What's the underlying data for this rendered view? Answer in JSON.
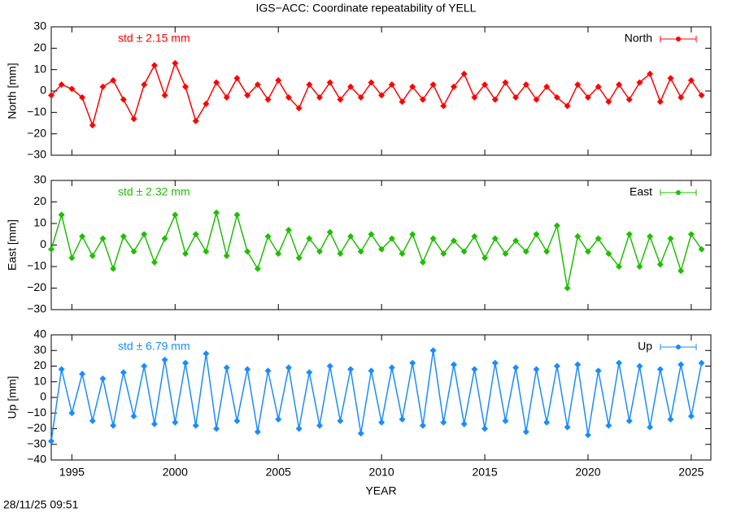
{
  "footer": "28/11/25 09:51",
  "chart_data": [
    {
      "type": "line",
      "title": "IGS−ACC: Coordinate repeatability of YELL",
      "ylabel": "North [mm]",
      "annotation": "std ± 2.15 mm",
      "legend": "top-right",
      "x": [
        1994.0,
        1994.5,
        1995.0,
        1995.5,
        1996.0,
        1996.5,
        1997.0,
        1997.5,
        1998.0,
        1998.5,
        1999.0,
        1999.5,
        2000.0,
        2000.5,
        2001.0,
        2001.5,
        2002.0,
        2002.5,
        2003.0,
        2003.5,
        2004.0,
        2004.5,
        2005.0,
        2005.5,
        2006.0,
        2006.5,
        2007.0,
        2007.5,
        2008.0,
        2008.5,
        2009.0,
        2009.5,
        2010.0,
        2010.5,
        2011.0,
        2011.5,
        2012.0,
        2012.5,
        2013.0,
        2013.5,
        2014.0,
        2014.5,
        2015.0,
        2015.5,
        2016.0,
        2016.5,
        2017.0,
        2017.5,
        2018.0,
        2018.5,
        2019.0,
        2019.5,
        2020.0,
        2020.5,
        2021.0,
        2021.5,
        2022.0,
        2022.5,
        2023.0,
        2023.5,
        2024.0,
        2024.5,
        2025.0,
        2025.5
      ],
      "xlim": [
        1994,
        2025.95
      ],
      "xticks": [
        1995,
        2000,
        2005,
        2010,
        2015,
        2020,
        2025
      ],
      "ylim": [
        -30,
        30
      ],
      "yticks": [
        {
          "value": -30,
          "label": "−30"
        },
        {
          "value": -20,
          "label": "−20"
        },
        {
          "value": -10,
          "label": "−10"
        },
        0,
        10,
        20,
        30
      ],
      "series": [
        {
          "name": "North",
          "color": "#ff0000",
          "values": [
            -2,
            3,
            1,
            -3,
            -16,
            2,
            5,
            -4,
            -13,
            3,
            12,
            -2,
            13,
            2,
            -14,
            -6,
            4,
            -3,
            6,
            -2,
            3,
            -4,
            5,
            -3,
            -8,
            3,
            -3,
            4,
            -4,
            2,
            -3,
            4,
            -2,
            3,
            -5,
            2,
            -4,
            3,
            -7,
            2,
            8,
            -3,
            3,
            -4,
            4,
            -3,
            3,
            -4,
            2,
            -3,
            -7,
            3,
            -3,
            2,
            -5,
            3,
            -4,
            4,
            8,
            -5,
            6,
            -3,
            5,
            -2
          ]
        }
      ]
    },
    {
      "type": "line",
      "ylabel": "East [mm]",
      "annotation": "std ± 2.32 mm",
      "legend": "top-right",
      "x": [
        1994.0,
        1994.5,
        1995.0,
        1995.5,
        1996.0,
        1996.5,
        1997.0,
        1997.5,
        1998.0,
        1998.5,
        1999.0,
        1999.5,
        2000.0,
        2000.5,
        2001.0,
        2001.5,
        2002.0,
        2002.5,
        2003.0,
        2003.5,
        2004.0,
        2004.5,
        2005.0,
        2005.5,
        2006.0,
        2006.5,
        2007.0,
        2007.5,
        2008.0,
        2008.5,
        2009.0,
        2009.5,
        2010.0,
        2010.5,
        2011.0,
        2011.5,
        2012.0,
        2012.5,
        2013.0,
        2013.5,
        2014.0,
        2014.5,
        2015.0,
        2015.5,
        2016.0,
        2016.5,
        2017.0,
        2017.5,
        2018.0,
        2018.5,
        2019.0,
        2019.5,
        2020.0,
        2020.5,
        2021.0,
        2021.5,
        2022.0,
        2022.5,
        2023.0,
        2023.5,
        2024.0,
        2024.5,
        2025.0,
        2025.5
      ],
      "xlim": [
        1994,
        2025.95
      ],
      "xticks": [
        1995,
        2000,
        2005,
        2010,
        2015,
        2020,
        2025
      ],
      "ylim": [
        -30,
        30
      ],
      "yticks": [
        {
          "value": -30,
          "label": "−30"
        },
        {
          "value": -20,
          "label": "−20"
        },
        {
          "value": -10,
          "label": "−10"
        },
        0,
        10,
        20,
        30
      ],
      "series": [
        {
          "name": "East",
          "color": "#1fbf00",
          "values": [
            -2,
            14,
            -6,
            4,
            -5,
            3,
            -11,
            4,
            -3,
            5,
            -8,
            3,
            14,
            -4,
            5,
            -3,
            15,
            -5,
            14,
            -3,
            -11,
            4,
            -4,
            7,
            -6,
            3,
            -3,
            6,
            -4,
            4,
            -3,
            5,
            -2,
            3,
            -4,
            5,
            -8,
            3,
            -4,
            2,
            -3,
            4,
            -6,
            3,
            -4,
            2,
            -3,
            5,
            -3,
            9,
            -20,
            4,
            -3,
            3,
            -4,
            -10,
            5,
            -10,
            4,
            -9,
            3,
            -12,
            5,
            -2
          ]
        }
      ]
    },
    {
      "type": "line",
      "ylabel": "Up [mm]",
      "xlabel": "YEAR",
      "annotation": "std ± 6.79 mm",
      "legend": "top-right",
      "x": [
        1994.0,
        1994.5,
        1995.0,
        1995.5,
        1996.0,
        1996.5,
        1997.0,
        1997.5,
        1998.0,
        1998.5,
        1999.0,
        1999.5,
        2000.0,
        2000.5,
        2001.0,
        2001.5,
        2002.0,
        2002.5,
        2003.0,
        2003.5,
        2004.0,
        2004.5,
        2005.0,
        2005.5,
        2006.0,
        2006.5,
        2007.0,
        2007.5,
        2008.0,
        2008.5,
        2009.0,
        2009.5,
        2010.0,
        2010.5,
        2011.0,
        2011.5,
        2012.0,
        2012.5,
        2013.0,
        2013.5,
        2014.0,
        2014.5,
        2015.0,
        2015.5,
        2016.0,
        2016.5,
        2017.0,
        2017.5,
        2018.0,
        2018.5,
        2019.0,
        2019.5,
        2020.0,
        2020.5,
        2021.0,
        2021.5,
        2022.0,
        2022.5,
        2023.0,
        2023.5,
        2024.0,
        2024.5,
        2025.0,
        2025.5
      ],
      "xlim": [
        1994,
        2025.95
      ],
      "xticks": [
        1995,
        2000,
        2005,
        2010,
        2015,
        2020,
        2025
      ],
      "ylim": [
        -40,
        40
      ],
      "yticks": [
        {
          "value": -40,
          "label": "−40"
        },
        {
          "value": -30,
          "label": "−30"
        },
        {
          "value": -20,
          "label": "−20"
        },
        {
          "value": -10,
          "label": "−10"
        },
        0,
        10,
        20,
        30,
        40
      ],
      "series": [
        {
          "name": "Up",
          "color": "#1a8cff",
          "values": [
            -28,
            18,
            -10,
            15,
            -15,
            12,
            -18,
            16,
            -12,
            20,
            -17,
            24,
            -16,
            22,
            -18,
            28,
            -20,
            19,
            -15,
            18,
            -22,
            17,
            -14,
            19,
            -20,
            16,
            -18,
            20,
            -15,
            18,
            -23,
            17,
            -16,
            19,
            -14,
            22,
            -18,
            30,
            -16,
            21,
            -17,
            18,
            -20,
            22,
            -15,
            19,
            -22,
            18,
            -16,
            20,
            -19,
            21,
            -24,
            17,
            -18,
            22,
            -15,
            20,
            -19,
            18,
            -14,
            21,
            -12,
            22
          ]
        }
      ]
    }
  ]
}
